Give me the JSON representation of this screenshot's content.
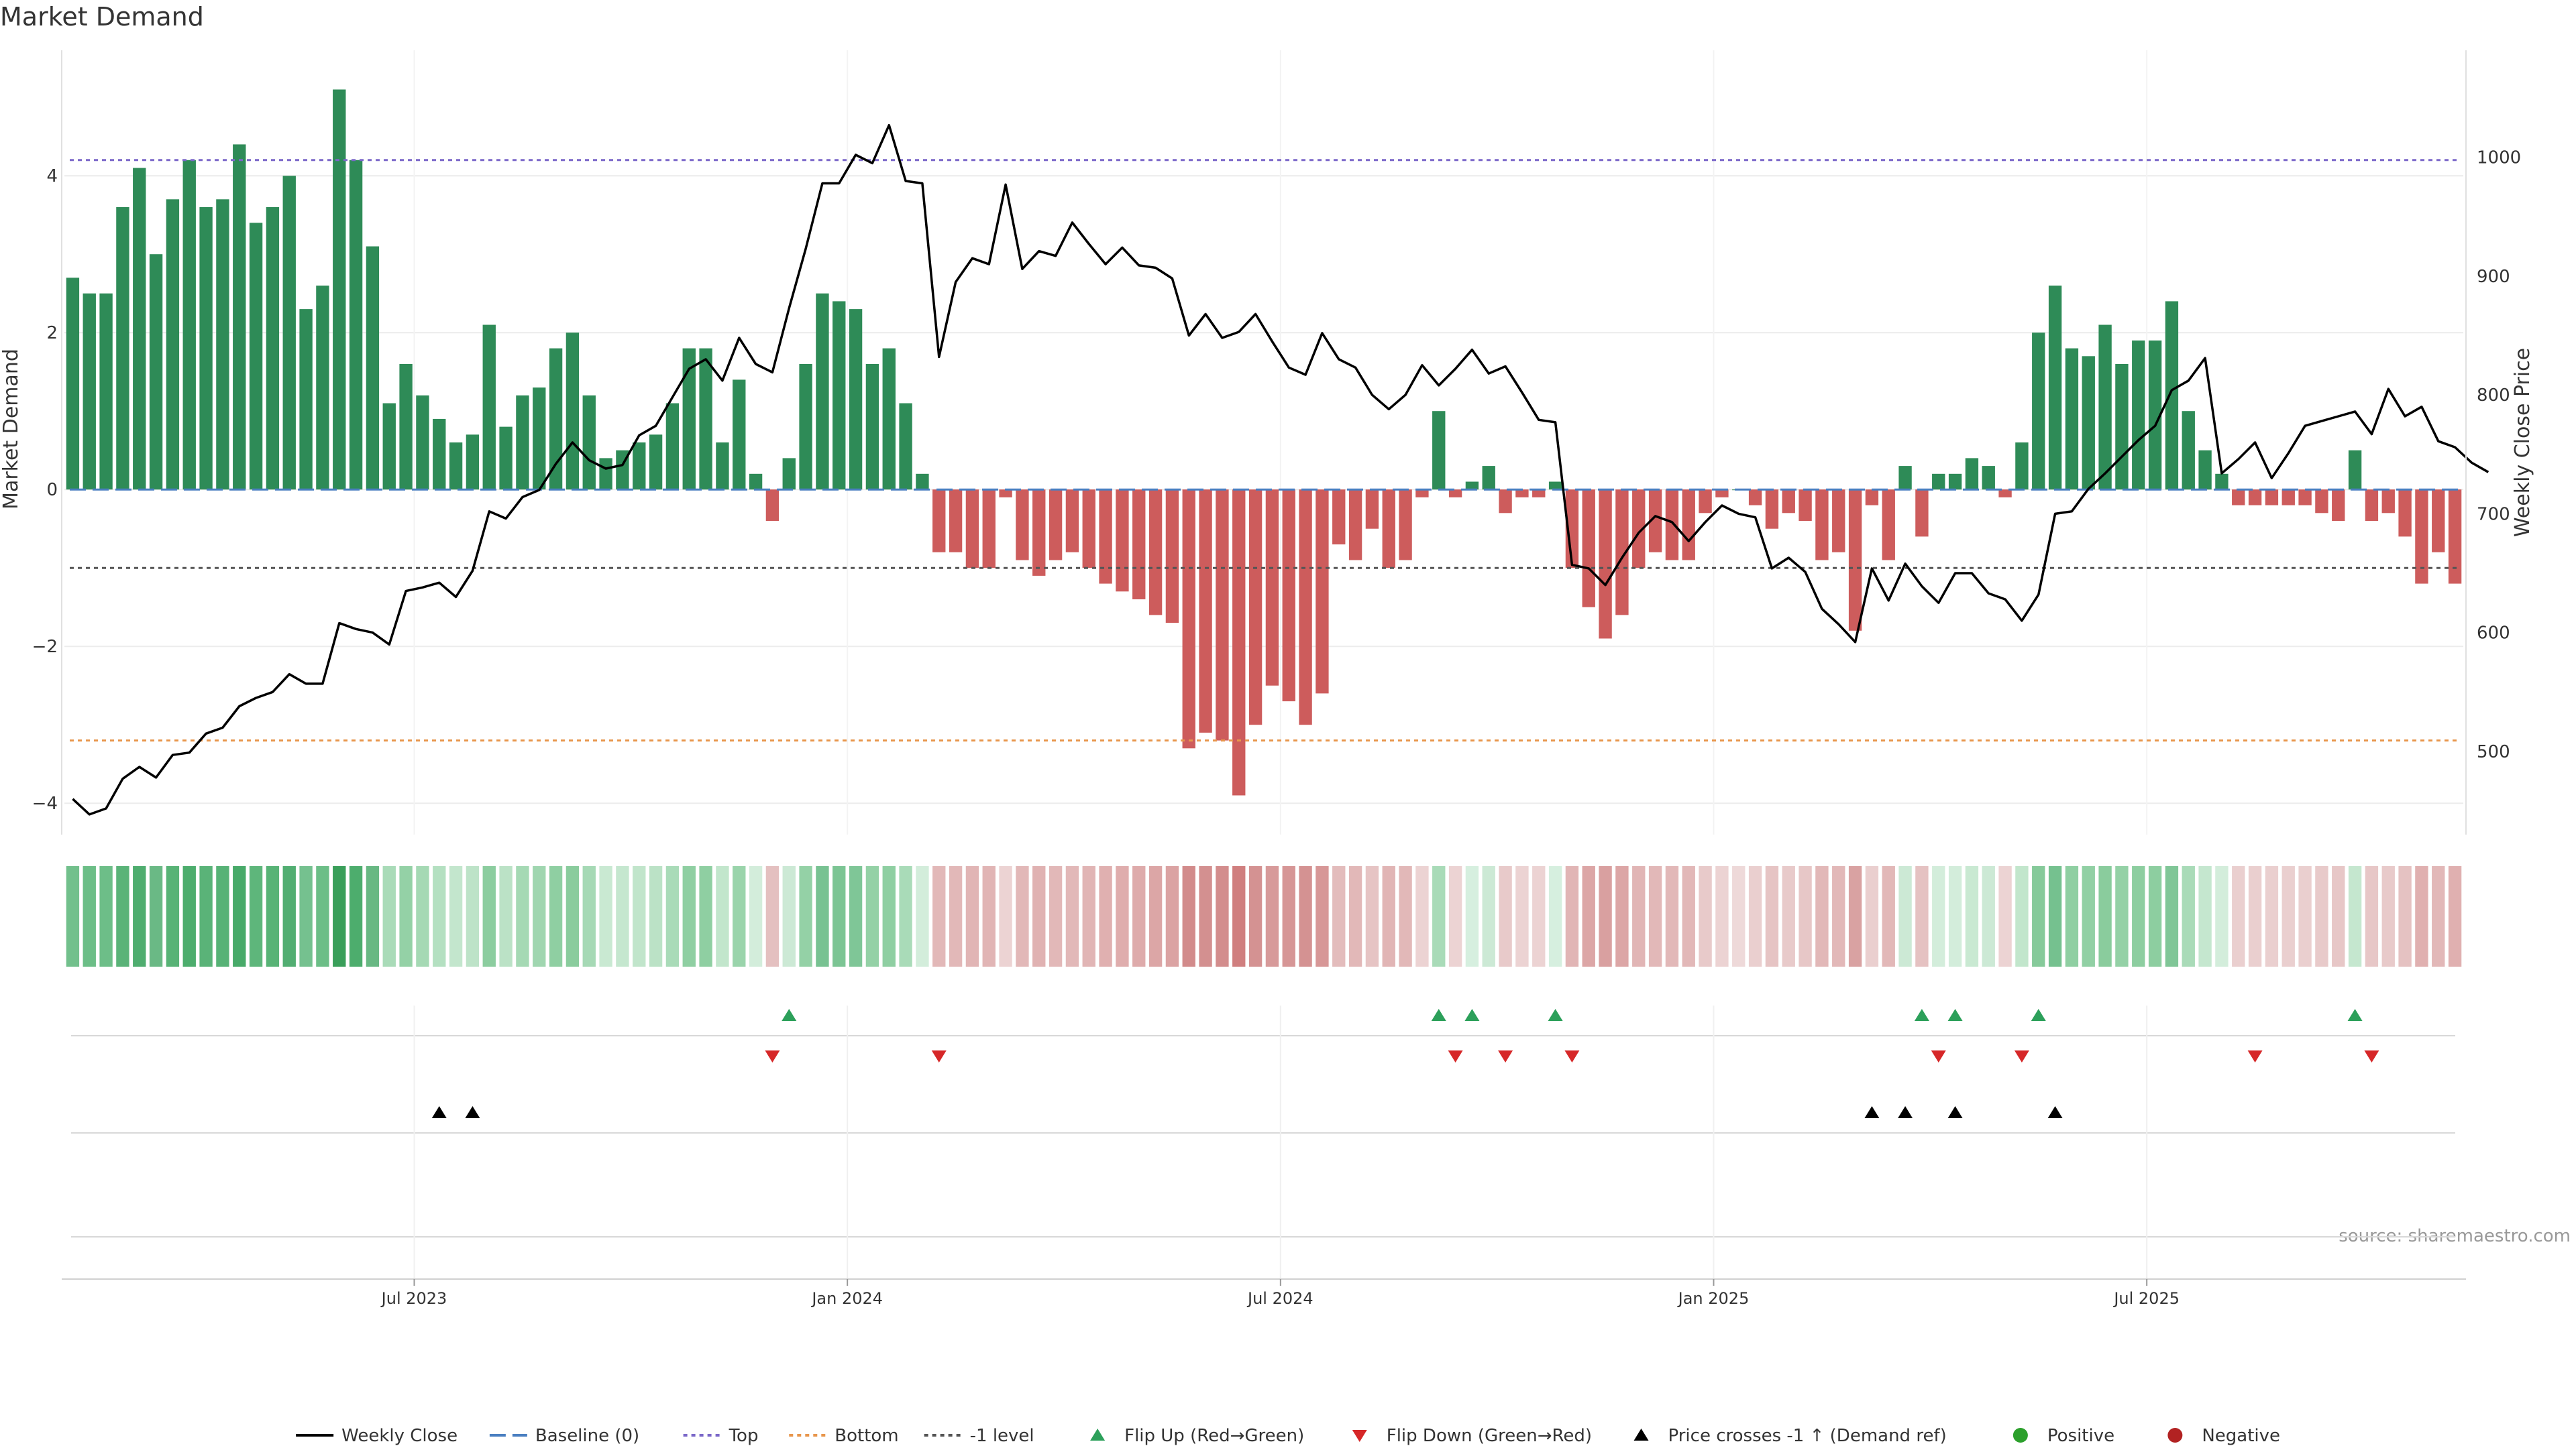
{
  "chart_data": {
    "type": "bar",
    "title": "Market Demand",
    "ylabel": "Market Demand",
    "y2label": "Weekly Close Price",
    "ylim": [
      -4.4,
      5.6
    ],
    "y2lim": [
      430,
      1090
    ],
    "yticks": [
      -4,
      -2,
      0,
      2,
      4
    ],
    "y2ticks": [
      500,
      600,
      700,
      800,
      900,
      1000
    ],
    "grid": true,
    "reference_lines": {
      "top": 4.2,
      "bottom": -3.2,
      "minus_one": -1.0,
      "baseline": 0
    },
    "x_tick_labels": [
      {
        "label": "Jul 2023",
        "index": 21
      },
      {
        "label": "Jan 2024",
        "index": 47
      },
      {
        "label": "Jul 2024",
        "index": 73
      },
      {
        "label": "Jan 2025",
        "index": 99
      },
      {
        "label": "Jul 2025",
        "index": 125
      }
    ],
    "demand": [
      2.7,
      2.5,
      2.5,
      3.6,
      4.1,
      3.0,
      3.7,
      4.2,
      3.6,
      3.7,
      4.4,
      3.4,
      3.6,
      4.0,
      2.3,
      2.6,
      5.1,
      4.2,
      3.1,
      1.1,
      1.6,
      1.2,
      0.9,
      0.6,
      0.7,
      2.1,
      0.8,
      1.2,
      1.3,
      1.8,
      2.0,
      1.2,
      0.4,
      0.5,
      0.6,
      0.7,
      1.1,
      1.8,
      1.8,
      0.6,
      1.4,
      0.2,
      -0.4,
      0.4,
      1.6,
      2.5,
      2.4,
      2.3,
      1.6,
      1.8,
      1.1,
      0.2,
      -0.8,
      -0.8,
      -1.0,
      -1.0,
      -0.1,
      -0.9,
      -1.1,
      -0.9,
      -0.8,
      -1.0,
      -1.2,
      -1.3,
      -1.4,
      -1.6,
      -1.7,
      -3.3,
      -3.1,
      -3.2,
      -3.9,
      -3.0,
      -2.5,
      -2.7,
      -3.0,
      -2.6,
      -0.7,
      -0.9,
      -0.5,
      -1.0,
      -0.9,
      -0.1,
      1.0,
      -0.1,
      0.1,
      0.3,
      -0.3,
      -0.1,
      -0.1,
      0.1,
      -1.0,
      -1.5,
      -1.9,
      -1.6,
      -1.0,
      -0.8,
      -0.9,
      -0.9,
      -0.3,
      -0.1,
      0.0,
      -0.2,
      -0.5,
      -0.3,
      -0.4,
      -0.9,
      -0.8,
      -1.8,
      -0.2,
      -0.9,
      0.3,
      -0.6,
      0.2,
      0.2,
      0.4,
      0.3,
      -0.1,
      0.6,
      2.0,
      2.6,
      1.8,
      1.7,
      2.1,
      1.6,
      1.9,
      1.9,
      2.4,
      1.0,
      0.5,
      0.2,
      -0.2,
      -0.2,
      -0.2,
      -0.2,
      -0.2,
      -0.3,
      -0.4,
      0.5,
      -0.4,
      -0.3,
      -0.6,
      -1.2,
      -0.8,
      -1.2
    ],
    "close": [
      460,
      447,
      452,
      477,
      487,
      478,
      497,
      499,
      515,
      520,
      538,
      545,
      550,
      565,
      557,
      557,
      608,
      603,
      600,
      590,
      635,
      638,
      642,
      630,
      652,
      702,
      696,
      714,
      720,
      742,
      760,
      745,
      738,
      741,
      766,
      774,
      798,
      822,
      830,
      812,
      848,
      826,
      819,
      873,
      923,
      978,
      978,
      1002,
      995,
      1027,
      980,
      978,
      832,
      895,
      915,
      910,
      977,
      906,
      921,
      917,
      945,
      927,
      910,
      924,
      909,
      907,
      898,
      850,
      868,
      848,
      853,
      868,
      845,
      823,
      817,
      852,
      830,
      823,
      800,
      788,
      800,
      825,
      808,
      822,
      838,
      818,
      824,
      802,
      779,
      777,
      657,
      654,
      640,
      663,
      684,
      698,
      693,
      677,
      693,
      707,
      700,
      697,
      654,
      663,
      651,
      620,
      607,
      592,
      654,
      627,
      658,
      639,
      625,
      650,
      650,
      633,
      628,
      610,
      632,
      700,
      702,
      721,
      734,
      748,
      762,
      774,
      804,
      812,
      831,
      734,
      746,
      760,
      730,
      751,
      774,
      778,
      782,
      786,
      767,
      805,
      782,
      790,
      761,
      756,
      743,
      735
    ],
    "heat_colors": [
      "#72c08c",
      "#6cbe87",
      "#6dbe88",
      "#5ab378",
      "#4fad6f",
      "#6ab985",
      "#58b376",
      "#4dad6d",
      "#5ab378",
      "#57b276",
      "#48aa69",
      "#5eb67b",
      "#58b376",
      "#52ae72",
      "#75c18f",
      "#6cbe87",
      "#3a9f5a",
      "#4dad6d",
      "#68b883",
      "#a9dbb8",
      "#94d1a6",
      "#a5d9b4",
      "#b4e0c1",
      "#c3e6cd",
      "#bde3c8",
      "#8ccd9f",
      "#bbe2c6",
      "#a5d9b4",
      "#a0d6b0",
      "#8fcfa2",
      "#8acc9d",
      "#a6d9b5",
      "#c9e9d2",
      "#c5e7cf",
      "#c1e5cb",
      "#bbe2c6",
      "#a9dbb8",
      "#8fcfa2",
      "#8fcfa2",
      "#c2e6cc",
      "#9ad4ab",
      "#d3eddb",
      "#e4c0c0",
      "#cce9d5",
      "#94d1a6",
      "#78c292",
      "#7cc594",
      "#7fc697",
      "#94d1a6",
      "#8fcfa2",
      "#a9dbb8",
      "#d3eddb",
      "#e2b8b8",
      "#e2b8b8",
      "#e1b5b5",
      "#e1b5b5",
      "#ecd3d3",
      "#e2b8b8",
      "#e0b2b2",
      "#e2b8b8",
      "#e2b8b8",
      "#e1b5b5",
      "#e0b0b0",
      "#dfadad",
      "#deabab",
      "#dca6a6",
      "#dba3a3",
      "#d28b8b",
      "#d39090",
      "#d38d8d",
      "#d07f7f",
      "#d49292",
      "#d79a9a",
      "#d69696",
      "#d49292",
      "#d79797",
      "#e3bcbc",
      "#e2b8b8",
      "#e6c4c4",
      "#e1b5b5",
      "#e2b8b8",
      "#ecd3d3",
      "#a9dbb8",
      "#ecd3d3",
      "#d6efdf",
      "#cce9d5",
      "#e8caca",
      "#ecd3d3",
      "#ecd3d3",
      "#d6efdf",
      "#e1b5b5",
      "#dca6a6",
      "#d9a0a0",
      "#dca6a6",
      "#e1b5b5",
      "#e2b8b8",
      "#e2b8b8",
      "#e2b8b8",
      "#e8caca",
      "#ecd3d3",
      "#eed9d9",
      "#eacfcf",
      "#e6c4c4",
      "#e8caca",
      "#e7c7c7",
      "#e2b8b8",
      "#e2b8b8",
      "#d9a2a2",
      "#eacfcf",
      "#e2b8b8",
      "#cce9d5",
      "#e5c2c2",
      "#d3eddb",
      "#d3eddb",
      "#c9e9d2",
      "#cce9d5",
      "#ecd3d3",
      "#c2e6cc",
      "#86ca9a",
      "#75c18f",
      "#8fcfa2",
      "#91d0a4",
      "#8acc9d",
      "#94d1a6",
      "#8dcea0",
      "#8dcea0",
      "#80c697",
      "#a9dbb8",
      "#c5e7cf",
      "#d3eddb",
      "#eacfcf",
      "#eacfcf",
      "#eacfcf",
      "#eacfcf",
      "#eacfcf",
      "#e8caca",
      "#e7c7c7",
      "#c5e7cf",
      "#e7c7c7",
      "#e8caca",
      "#e5c2c2",
      "#e0b0b0",
      "#e2b8b8",
      "#e0b0b0"
    ],
    "flip_up_indices": [
      43,
      82,
      84,
      89,
      111,
      113,
      118,
      137
    ],
    "flip_down_indices": [
      42,
      52,
      83,
      86,
      90,
      112,
      117,
      131,
      138
    ],
    "price_cross_indices": [
      22,
      24,
      108,
      110,
      113,
      119
    ],
    "colors": {
      "positive_bar": "#2e8b57",
      "negative_bar": "#cd5c5c",
      "close_line": "#000000",
      "baseline": "#4a7fc1",
      "top": "#7b68c9",
      "bottom": "#e8964c",
      "minus_one": "#555555",
      "flip_up": "#2ca05a",
      "flip_down": "#d62728",
      "price_cross": "#000000",
      "positive_dot": "#2ca02c",
      "negative_dot": "#b22222"
    },
    "legend": [
      {
        "label": "Weekly Close",
        "kind": "line",
        "color": "#000000",
        "dash": ""
      },
      {
        "label": "Baseline (0)",
        "kind": "line",
        "color": "#4a7fc1",
        "dash": "24,10"
      },
      {
        "label": "Top",
        "kind": "line",
        "color": "#7b68c9",
        "dash": "6,6"
      },
      {
        "label": "Bottom",
        "kind": "line",
        "color": "#e8964c",
        "dash": "6,6"
      },
      {
        "label": "-1 level",
        "kind": "line",
        "color": "#555555",
        "dash": "6,6"
      },
      {
        "label": "Flip Up (Red→Green)",
        "kind": "tri-up",
        "color": "#2ca05a"
      },
      {
        "label": "Flip Down (Green→Red)",
        "kind": "tri-down",
        "color": "#d62728"
      },
      {
        "label": "Price crosses -1 ↑ (Demand ref)",
        "kind": "tri-up",
        "color": "#000000"
      },
      {
        "label": "Positive",
        "kind": "dot",
        "color": "#2ca02c"
      },
      {
        "label": "Negative",
        "kind": "dot",
        "color": "#b22222"
      }
    ],
    "legend_placement": "bottom-center",
    "source": "source: sharemaestro.com"
  }
}
